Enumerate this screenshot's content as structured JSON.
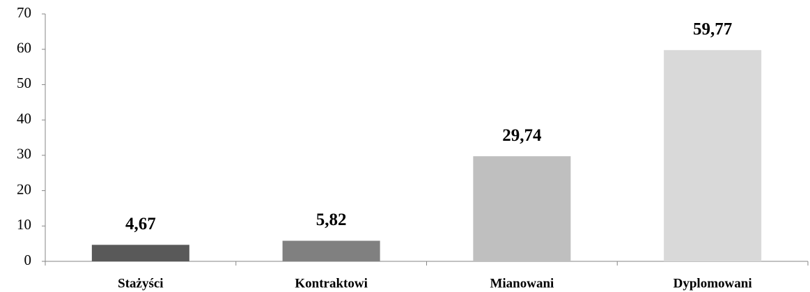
{
  "chart_data": {
    "type": "bar",
    "categories": [
      "Stażyści",
      "Kontraktowi",
      "Mianowani",
      "Dyplomowani"
    ],
    "values": [
      4.67,
      5.82,
      29.74,
      59.77
    ],
    "value_labels": [
      "4,67",
      "5,82",
      "29,74",
      "59,77"
    ],
    "colors": [
      "#595959",
      "#808080",
      "#bfbfbf",
      "#d9d9d9"
    ],
    "ylim": [
      0,
      70
    ],
    "yticks": [
      0,
      10,
      20,
      30,
      40,
      50,
      60,
      70
    ],
    "grid": false
  }
}
